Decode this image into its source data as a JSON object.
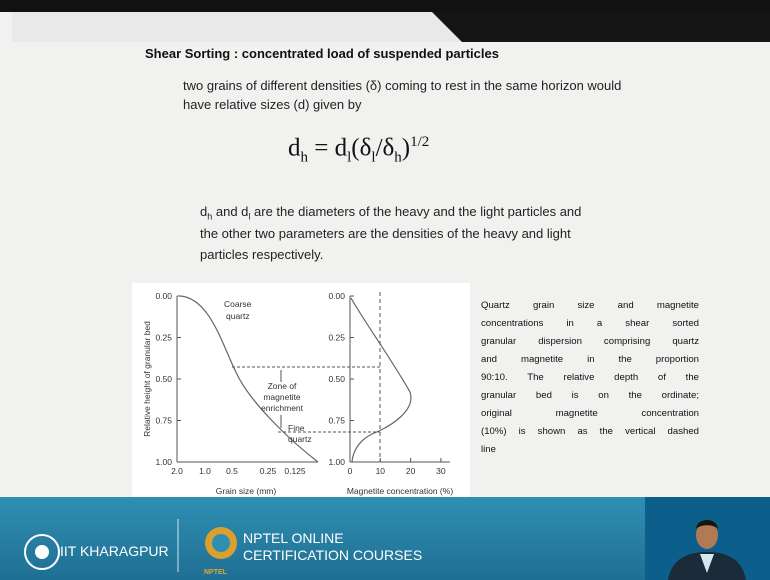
{
  "slide": {
    "title": "Shear Sorting : concentrated load of suspended particles",
    "paragraph_1": [
      "two grains of different densities (δ) coming to rest in the same horizon would",
      "have relative sizes (d) given by"
    ],
    "formula": [
      "d",
      "h",
      " = d",
      "l",
      "(δ",
      "l",
      "/δ",
      "h",
      ")",
      "1/2"
    ],
    "paragraph_2": {
      "line_1": [
        "d",
        "h",
        " and d",
        "l",
        " are the diameters of the heavy and the light particles and"
      ],
      "line_2": "the other two parameters are the densities of the heavy and light",
      "line_3": "particles respectively."
    },
    "figure": {
      "y_axis_label": "Relative height of granular bed",
      "left_yticks": [
        "0.00",
        "0.25",
        "0.50",
        "0.75",
        "1.00"
      ],
      "left_xticks": [
        "2.0",
        "1.0",
        "0.5",
        "0.25",
        "0.125"
      ],
      "left_x_label": "Grain size (mm)",
      "right_yticks": [
        "0.00",
        "0.25",
        "0.50",
        "0.75",
        "1.00"
      ],
      "right_xticks": [
        "0",
        "10",
        "20",
        "30"
      ],
      "right_x_label": "Magnetite concentration (%)",
      "annotations": {
        "coarse": [
          "Coarse",
          "quartz"
        ],
        "zone": [
          "Zone of",
          "magnetite",
          "enrichment"
        ],
        "fine": [
          "Fine",
          "quartz"
        ]
      }
    },
    "caption": [
      "Quartz grain size and magnetite",
      "concentrations in a shear sorted",
      "granular dispersion comprising quartz",
      "and magnetite in the proportion",
      "90:10. The relative depth of the",
      "granular bed is on the ordinate;",
      "original magnetite concentration",
      "(10%) is shown as the vertical dashed",
      "line"
    ]
  },
  "footer": {
    "institute": "IIT KHARAGPUR",
    "nptel": [
      "NPTEL ONLINE",
      "CERTIFICATION COURSES"
    ],
    "logo_text": "NPTEL"
  }
}
